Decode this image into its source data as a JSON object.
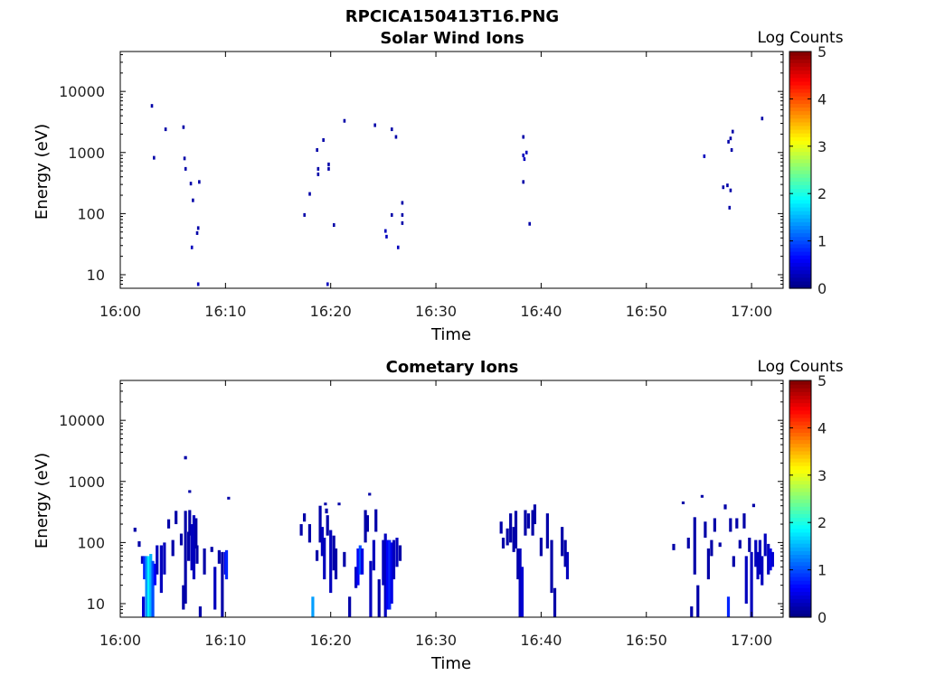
{
  "figure": {
    "title": "RPCICA150413T16.PNG"
  },
  "chart_data": [
    {
      "type": "heatmap",
      "title": "Solar Wind Ions",
      "xlabel": "Time",
      "ylabel": "Energy (eV)",
      "y_scale": "log",
      "xlim": [
        "16:00",
        "17:03"
      ],
      "ylim": [
        6,
        45000
      ],
      "x_ticks": [
        "16:00",
        "16:10",
        "16:20",
        "16:30",
        "16:40",
        "16:50",
        "17:00"
      ],
      "y_ticks": [
        "10",
        "100",
        "1000",
        "10000"
      ],
      "colorbar": {
        "label": "Log Counts",
        "range": [
          0,
          5
        ],
        "ticks": [
          "0",
          "1",
          "2",
          "3",
          "4",
          "5"
        ],
        "colormap": "jet"
      },
      "grid": false,
      "cells_note_units": "time in minutes after 16:00, energy in eV, value in log counts",
      "cells": [
        [
          3.0,
          5800,
          0.2
        ],
        [
          3.2,
          820,
          0.2
        ],
        [
          4.3,
          2400,
          0.2
        ],
        [
          6.0,
          2600,
          0.2
        ],
        [
          6.1,
          800,
          0.2
        ],
        [
          6.2,
          540,
          0.2
        ],
        [
          6.7,
          310,
          0.2
        ],
        [
          6.8,
          28,
          0.3
        ],
        [
          6.9,
          165,
          0.2
        ],
        [
          7.3,
          48,
          0.2
        ],
        [
          7.4,
          58,
          0.2
        ],
        [
          7.5,
          330,
          0.2
        ],
        [
          7.4,
          7,
          0.3
        ],
        [
          17.5,
          95,
          0.2
        ],
        [
          18.0,
          210,
          0.2
        ],
        [
          18.7,
          1100,
          0.2
        ],
        [
          18.8,
          540,
          0.2
        ],
        [
          18.8,
          440,
          0.2
        ],
        [
          19.3,
          1600,
          0.2
        ],
        [
          19.8,
          640,
          0.2
        ],
        [
          19.8,
          540,
          0.2
        ],
        [
          20.3,
          65,
          0.2
        ],
        [
          19.7,
          7,
          0.3
        ],
        [
          21.3,
          3300,
          0.2
        ],
        [
          24.2,
          2800,
          0.2
        ],
        [
          25.2,
          52,
          0.3
        ],
        [
          25.3,
          42,
          0.3
        ],
        [
          25.8,
          2400,
          0.2
        ],
        [
          25.8,
          95,
          0.2
        ],
        [
          26.2,
          1800,
          0.2
        ],
        [
          26.4,
          28,
          0.3
        ],
        [
          26.8,
          150,
          0.2
        ],
        [
          26.8,
          95,
          0.2
        ],
        [
          26.8,
          70,
          0.2
        ],
        [
          38.3,
          1800,
          0.2
        ],
        [
          38.3,
          900,
          0.3
        ],
        [
          38.4,
          780,
          0.3
        ],
        [
          38.6,
          1000,
          0.3
        ],
        [
          38.3,
          330,
          0.2
        ],
        [
          38.9,
          68,
          0.2
        ],
        [
          55.5,
          870,
          0.3
        ],
        [
          57.3,
          270,
          0.2
        ],
        [
          57.7,
          290,
          0.2
        ],
        [
          57.8,
          1500,
          0.2
        ],
        [
          58.0,
          1700,
          0.2
        ],
        [
          58.0,
          240,
          0.2
        ],
        [
          58.1,
          1100,
          0.2
        ],
        [
          58.2,
          2200,
          0.2
        ],
        [
          57.9,
          125,
          0.2
        ],
        [
          61.0,
          3600,
          0.2
        ]
      ]
    },
    {
      "type": "heatmap",
      "title": "Cometary Ions",
      "xlabel": "Time",
      "ylabel": "Energy (eV)",
      "y_scale": "log",
      "xlim": [
        "16:00",
        "17:03"
      ],
      "ylim": [
        6,
        45000
      ],
      "x_ticks": [
        "16:00",
        "16:10",
        "16:20",
        "16:30",
        "16:40",
        "16:50",
        "17:00"
      ],
      "y_ticks": [
        "10",
        "100",
        "1000",
        "10000"
      ],
      "colorbar": {
        "label": "Log Counts",
        "range": [
          0,
          5
        ],
        "ticks": [
          "0",
          "1",
          "2",
          "3",
          "4",
          "5"
        ],
        "colormap": "jet"
      },
      "grid": false,
      "columns_note_units": "[time in minutes after 16:00, low energy eV, high energy eV, log counts]",
      "columns": [
        [
          1.4,
          150,
          175,
          0.2
        ],
        [
          1.8,
          85,
          105,
          0.2
        ],
        [
          2.1,
          45,
          60,
          0.3
        ],
        [
          2.2,
          6,
          13,
          0.4
        ],
        [
          2.3,
          25,
          60,
          0.8
        ],
        [
          2.5,
          6,
          60,
          1.3
        ],
        [
          2.7,
          6,
          60,
          1.8
        ],
        [
          2.9,
          6,
          65,
          1.5
        ],
        [
          3.1,
          6,
          50,
          1.0
        ],
        [
          3.3,
          20,
          45,
          0.6
        ],
        [
          3.5,
          30,
          90,
          0.3
        ],
        [
          3.9,
          15,
          90,
          0.3
        ],
        [
          4.2,
          30,
          100,
          0.3
        ],
        [
          4.6,
          170,
          240,
          0.2
        ],
        [
          5.0,
          60,
          110,
          0.2
        ],
        [
          5.3,
          200,
          330,
          0.2
        ],
        [
          5.8,
          90,
          140,
          0.2
        ],
        [
          6.0,
          8,
          20,
          0.2
        ],
        [
          6.2,
          10,
          330,
          0.2
        ],
        [
          6.5,
          50,
          150,
          0.2
        ],
        [
          6.6,
          130,
          340,
          0.2
        ],
        [
          6.8,
          35,
          200,
          0.3
        ],
        [
          7.0,
          25,
          280,
          0.3
        ],
        [
          7.2,
          80,
          250,
          0.2
        ],
        [
          7.3,
          45,
          90,
          0.2
        ],
        [
          7.6,
          6,
          9,
          0.2
        ],
        [
          8.0,
          30,
          80,
          0.2
        ],
        [
          8.7,
          70,
          85,
          0.2
        ],
        [
          9.0,
          8,
          40,
          0.3
        ],
        [
          9.4,
          45,
          75,
          0.2
        ],
        [
          9.7,
          6,
          70,
          0.2
        ],
        [
          10.0,
          30,
          70,
          0.5
        ],
        [
          10.1,
          25,
          75,
          0.8
        ],
        [
          6.2,
          2300,
          2600,
          0.2
        ],
        [
          6.6,
          650,
          720,
          0.2
        ],
        [
          10.3,
          520,
          560,
          0.2
        ],
        [
          17.2,
          130,
          200,
          0.2
        ],
        [
          17.5,
          220,
          300,
          0.2
        ],
        [
          18.0,
          100,
          200,
          0.2
        ],
        [
          18.3,
          6,
          13,
          1.4
        ],
        [
          18.7,
          50,
          75,
          0.2
        ],
        [
          19.0,
          100,
          400,
          0.2
        ],
        [
          19.2,
          60,
          180,
          0.3
        ],
        [
          19.4,
          25,
          120,
          0.3
        ],
        [
          19.5,
          420,
          450,
          0.2
        ],
        [
          19.6,
          300,
          360,
          0.2
        ],
        [
          19.7,
          130,
          280,
          0.2
        ],
        [
          20.0,
          15,
          160,
          0.3
        ],
        [
          20.3,
          35,
          130,
          0.2
        ],
        [
          20.5,
          25,
          80,
          0.2
        ],
        [
          20.8,
          420,
          450,
          0.2
        ],
        [
          21.3,
          40,
          70,
          0.2
        ],
        [
          21.8,
          6,
          13,
          0.2
        ],
        [
          22.4,
          18,
          40,
          0.3
        ],
        [
          22.6,
          20,
          80,
          0.6
        ],
        [
          22.8,
          30,
          90,
          1.0
        ],
        [
          23.0,
          30,
          80,
          0.5
        ],
        [
          23.3,
          100,
          340,
          0.2
        ],
        [
          23.5,
          150,
          280,
          0.2
        ],
        [
          23.8,
          6,
          50,
          0.3
        ],
        [
          24.1,
          35,
          110,
          0.3
        ],
        [
          24.3,
          150,
          350,
          0.2
        ],
        [
          24.6,
          6,
          25,
          0.2
        ],
        [
          25.0,
          20,
          110,
          0.3
        ],
        [
          25.2,
          6,
          140,
          0.3
        ],
        [
          25.4,
          8,
          110,
          0.6
        ],
        [
          25.6,
          8,
          110,
          0.8
        ],
        [
          25.8,
          10,
          100,
          0.5
        ],
        [
          26.0,
          25,
          110,
          0.3
        ],
        [
          26.3,
          40,
          120,
          0.3
        ],
        [
          26.6,
          50,
          90,
          0.2
        ],
        [
          23.7,
          600,
          650,
          0.2
        ],
        [
          36.2,
          140,
          220,
          0.2
        ],
        [
          36.4,
          80,
          120,
          0.2
        ],
        [
          36.8,
          90,
          170,
          0.2
        ],
        [
          37.1,
          100,
          300,
          0.2
        ],
        [
          37.4,
          70,
          180,
          0.2
        ],
        [
          37.6,
          80,
          330,
          0.2
        ],
        [
          37.8,
          25,
          80,
          0.2
        ],
        [
          38.0,
          6,
          80,
          0.3
        ],
        [
          38.2,
          6,
          40,
          0.4
        ],
        [
          38.5,
          130,
          340,
          0.2
        ],
        [
          38.8,
          170,
          300,
          0.2
        ],
        [
          39.2,
          130,
          340,
          0.2
        ],
        [
          39.4,
          200,
          420,
          0.2
        ],
        [
          40.0,
          60,
          120,
          0.2
        ],
        [
          40.6,
          80,
          300,
          0.2
        ],
        [
          41.0,
          15,
          110,
          0.2
        ],
        [
          41.3,
          6,
          18,
          0.2
        ],
        [
          42.0,
          60,
          180,
          0.2
        ],
        [
          42.3,
          40,
          110,
          0.2
        ],
        [
          42.5,
          25,
          70,
          0.3
        ],
        [
          52.6,
          75,
          95,
          0.2
        ],
        [
          53.5,
          430,
          470,
          0.2
        ],
        [
          54.0,
          80,
          120,
          0.2
        ],
        [
          54.3,
          6,
          9,
          0.2
        ],
        [
          54.6,
          30,
          260,
          0.2
        ],
        [
          54.9,
          6,
          20,
          0.2
        ],
        [
          55.3,
          560,
          600,
          0.2
        ],
        [
          55.6,
          120,
          220,
          0.2
        ],
        [
          55.9,
          25,
          80,
          0.2
        ],
        [
          56.2,
          60,
          110,
          0.2
        ],
        [
          56.5,
          150,
          250,
          0.2
        ],
        [
          57.0,
          85,
          100,
          0.2
        ],
        [
          57.5,
          350,
          420,
          0.2
        ],
        [
          57.8,
          6,
          13,
          0.8
        ],
        [
          58.0,
          150,
          250,
          0.2
        ],
        [
          58.3,
          40,
          60,
          0.2
        ],
        [
          58.6,
          170,
          250,
          0.2
        ],
        [
          58.9,
          80,
          110,
          0.2
        ],
        [
          59.3,
          170,
          300,
          0.2
        ],
        [
          59.5,
          10,
          60,
          0.3
        ],
        [
          59.8,
          70,
          120,
          0.2
        ],
        [
          60.0,
          6,
          70,
          0.3
        ],
        [
          60.2,
          380,
          430,
          0.2
        ],
        [
          60.4,
          40,
          110,
          0.3
        ],
        [
          60.6,
          25,
          70,
          0.3
        ],
        [
          60.8,
          30,
          110,
          0.3
        ],
        [
          61.0,
          20,
          60,
          0.3
        ],
        [
          61.3,
          60,
          140,
          0.3
        ],
        [
          61.6,
          30,
          95,
          0.3
        ],
        [
          61.8,
          35,
          80,
          0.5
        ],
        [
          62.0,
          40,
          70,
          0.4
        ]
      ]
    }
  ]
}
